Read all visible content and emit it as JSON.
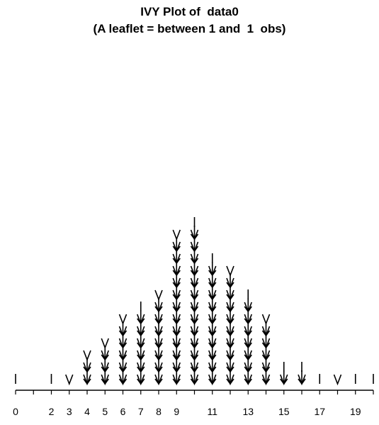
{
  "chart_data": {
    "type": "ivy",
    "title": "IVY Plot of  data0",
    "subtitle": "(A leaflet = between 1 and  1  obs)",
    "xlabel": "",
    "ylabel": "",
    "xlim": [
      0,
      20
    ],
    "x_tick_labels": [
      "0",
      "2",
      "3",
      "4",
      "5",
      "6",
      "7",
      "8",
      "9",
      "11",
      "13",
      "15",
      "17",
      "19"
    ],
    "columns": [
      {
        "x": 0,
        "arrows": 0,
        "top": "I"
      },
      {
        "x": 2,
        "arrows": 0,
        "top": "I"
      },
      {
        "x": 3,
        "arrows": 0,
        "top": "V"
      },
      {
        "x": 4,
        "arrows": 2,
        "top": "V"
      },
      {
        "x": 5,
        "arrows": 3,
        "top": "V"
      },
      {
        "x": 6,
        "arrows": 5,
        "top": "V"
      },
      {
        "x": 7,
        "arrows": 6,
        "top": "I"
      },
      {
        "x": 8,
        "arrows": 7,
        "top": "V"
      },
      {
        "x": 9,
        "arrows": 12,
        "top": "V"
      },
      {
        "x": 10,
        "arrows": 13,
        "top": "I"
      },
      {
        "x": 11,
        "arrows": 10,
        "top": "I"
      },
      {
        "x": 12,
        "arrows": 9,
        "top": "V"
      },
      {
        "x": 13,
        "arrows": 7,
        "top": "I"
      },
      {
        "x": 14,
        "arrows": 5,
        "top": "V"
      },
      {
        "x": 15,
        "arrows": 1,
        "top": "I"
      },
      {
        "x": 16,
        "arrows": 1,
        "top": "I"
      },
      {
        "x": 17,
        "arrows": 0,
        "top": "I"
      },
      {
        "x": 18,
        "arrows": 0,
        "top": "V"
      },
      {
        "x": 19,
        "arrows": 0,
        "top": "I"
      },
      {
        "x": 20,
        "arrows": 0,
        "top": "I"
      }
    ]
  }
}
